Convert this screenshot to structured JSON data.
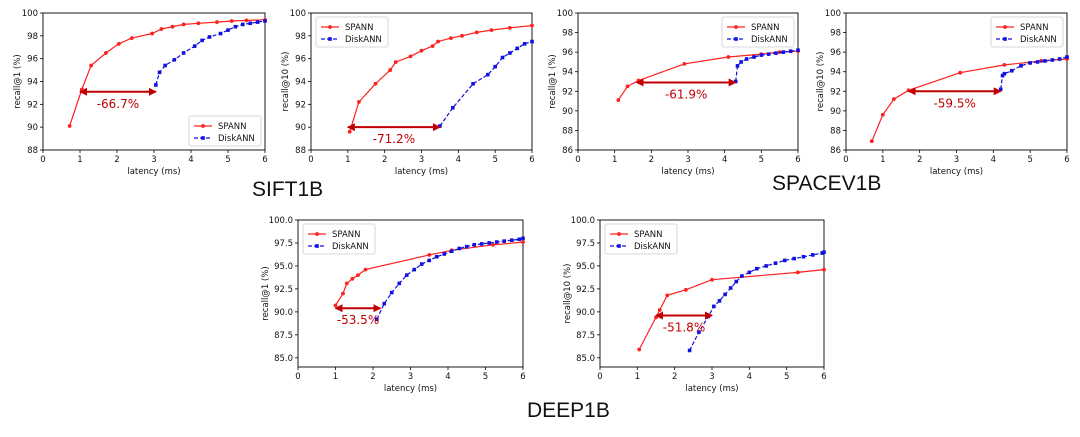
{
  "figure_titles": {
    "sift": "SIFT1B",
    "spacev": "SPACEV1B",
    "deep": "DEEP1B"
  },
  "colors": {
    "spann": "#ff2020",
    "diskann": "#1010e0",
    "annotation": "#c00000",
    "axis": "#000000"
  },
  "chart_data": [
    {
      "type": "line",
      "xlabel": "latency (ms)",
      "ylabel": "recall@1 (%)",
      "xlim": [
        0,
        6
      ],
      "ylim": [
        88,
        100
      ],
      "xticks": [
        "0",
        "1",
        "2",
        "3",
        "4",
        "5",
        "6"
      ],
      "yticks": [
        "88",
        "90",
        "92",
        "94",
        "96",
        "98",
        "100"
      ],
      "legend": "bottom-right",
      "series": [
        {
          "name": "SPANN",
          "x": [
            0.72,
            1.05,
            1.3,
            1.7,
            2.05,
            2.4,
            2.95,
            3.2,
            3.5,
            3.8,
            4.2,
            4.7,
            5.1,
            5.5,
            6.0
          ],
          "y": [
            90.1,
            93.3,
            95.4,
            96.5,
            97.3,
            97.8,
            98.2,
            98.6,
            98.8,
            99.0,
            99.1,
            99.2,
            99.3,
            99.35,
            99.4
          ]
        },
        {
          "name": "DiskANN",
          "x": [
            3.05,
            3.15,
            3.3,
            3.55,
            3.8,
            4.1,
            4.3,
            4.5,
            4.8,
            5.0,
            5.2,
            5.4,
            5.6,
            5.8,
            6.0
          ],
          "y": [
            93.7,
            94.8,
            95.4,
            95.9,
            96.5,
            97.1,
            97.6,
            97.9,
            98.2,
            98.5,
            98.8,
            99.0,
            99.1,
            99.2,
            99.3
          ]
        }
      ],
      "annotation": {
        "text": "-66.7%",
        "x_from": 1.0,
        "x_to": 3.05,
        "y": 93.1
      }
    },
    {
      "type": "line",
      "xlabel": "latency (ms)",
      "ylabel": "recall@10 (%)",
      "xlim": [
        0,
        6
      ],
      "ylim": [
        88,
        100
      ],
      "xticks": [
        "0",
        "1",
        "2",
        "3",
        "4",
        "5",
        "6"
      ],
      "yticks": [
        "88",
        "90",
        "92",
        "94",
        "96",
        "98",
        "100"
      ],
      "legend": "top-left",
      "series": [
        {
          "name": "SPANN",
          "x": [
            1.05,
            1.3,
            1.75,
            2.15,
            2.3,
            2.7,
            3.0,
            3.3,
            3.45,
            3.8,
            4.1,
            4.5,
            4.9,
            5.4,
            6.0
          ],
          "y": [
            89.6,
            92.2,
            93.8,
            95.0,
            95.7,
            96.2,
            96.7,
            97.1,
            97.5,
            97.8,
            98.0,
            98.3,
            98.5,
            98.7,
            98.9
          ]
        },
        {
          "name": "DiskANN",
          "x": [
            3.5,
            3.85,
            4.4,
            4.8,
            5.0,
            5.2,
            5.4,
            5.6,
            5.8,
            6.0
          ],
          "y": [
            90.1,
            91.7,
            93.8,
            94.6,
            95.3,
            96.1,
            96.5,
            96.9,
            97.3,
            97.5
          ]
        }
      ],
      "annotation": {
        "text": "-71.2%",
        "x_from": 1.0,
        "x_to": 3.5,
        "y": 90.0
      }
    },
    {
      "type": "line",
      "xlabel": "latency (ms)",
      "ylabel": "recall@1 (%)",
      "xlim": [
        0,
        6
      ],
      "ylim": [
        86,
        100
      ],
      "xticks": [
        "0",
        "1",
        "2",
        "3",
        "4",
        "5",
        "6"
      ],
      "yticks": [
        "86",
        "88",
        "90",
        "92",
        "94",
        "96",
        "98",
        "100"
      ],
      "legend": "top-right",
      "series": [
        {
          "name": "SPANN",
          "x": [
            1.1,
            1.35,
            1.65,
            2.9,
            4.1,
            5.0,
            5.5,
            6.0
          ],
          "y": [
            91.1,
            92.5,
            93.1,
            94.8,
            95.5,
            95.8,
            96.0,
            96.1
          ]
        },
        {
          "name": "DiskANN",
          "x": [
            4.3,
            4.35,
            4.45,
            4.6,
            4.8,
            5.0,
            5.2,
            5.4,
            5.6,
            5.8,
            6.0
          ],
          "y": [
            93.0,
            94.6,
            95.0,
            95.3,
            95.5,
            95.7,
            95.8,
            95.9,
            96.0,
            96.1,
            96.2
          ]
        }
      ],
      "annotation": {
        "text": "-61.9%",
        "x_from": 1.6,
        "x_to": 4.3,
        "y": 92.9
      }
    },
    {
      "type": "line",
      "xlabel": "latency (ms)",
      "ylabel": "recall@10 (%)",
      "xlim": [
        0,
        6
      ],
      "ylim": [
        86,
        100
      ],
      "xticks": [
        "0",
        "1",
        "2",
        "3",
        "4",
        "5",
        "6"
      ],
      "yticks": [
        "86",
        "88",
        "90",
        "92",
        "94",
        "96",
        "98",
        "100"
      ],
      "legend": "top-right",
      "series": [
        {
          "name": "SPANN",
          "x": [
            0.7,
            1.0,
            1.3,
            1.7,
            3.1,
            4.3,
            5.3,
            6.0
          ],
          "y": [
            86.9,
            89.6,
            91.2,
            92.1,
            93.9,
            94.7,
            95.1,
            95.3
          ]
        },
        {
          "name": "DiskANN",
          "x": [
            4.2,
            4.25,
            4.3,
            4.5,
            4.75,
            5.0,
            5.2,
            5.4,
            5.6,
            5.8,
            6.0
          ],
          "y": [
            92.2,
            93.6,
            93.8,
            94.1,
            94.6,
            94.9,
            95.0,
            95.1,
            95.2,
            95.3,
            95.5
          ]
        }
      ],
      "annotation": {
        "text": "-59.5%",
        "x_from": 1.7,
        "x_to": 4.2,
        "y": 92.0
      }
    },
    {
      "type": "line",
      "xlabel": "latency (ms)",
      "ylabel": "recall@1 (%)",
      "xlim": [
        0,
        6
      ],
      "ylim": [
        84,
        100
      ],
      "xticks": [
        "0",
        "1",
        "2",
        "3",
        "4",
        "5",
        "6"
      ],
      "yticks": [
        "85.0",
        "87.5",
        "90.0",
        "92.5",
        "95.0",
        "97.5",
        "100.0"
      ],
      "legend": "top-left",
      "series": [
        {
          "name": "SPANN",
          "x": [
            1.0,
            1.2,
            1.3,
            1.45,
            1.6,
            1.8,
            3.5,
            4.1,
            5.2,
            6.0
          ],
          "y": [
            90.7,
            92.0,
            93.1,
            93.6,
            94.0,
            94.6,
            96.2,
            96.7,
            97.3,
            97.6
          ]
        },
        {
          "name": "DiskANN",
          "x": [
            2.1,
            2.3,
            2.5,
            2.7,
            2.9,
            3.1,
            3.3,
            3.5,
            3.7,
            3.9,
            4.1,
            4.3,
            4.5,
            4.7,
            4.9,
            5.1,
            5.3,
            5.5,
            5.7,
            5.9,
            6.0
          ],
          "y": [
            89.2,
            90.9,
            92.1,
            93.1,
            94.0,
            94.6,
            95.2,
            95.6,
            96.0,
            96.3,
            96.6,
            96.9,
            97.1,
            97.3,
            97.4,
            97.5,
            97.6,
            97.7,
            97.8,
            97.9,
            98.0
          ]
        }
      ],
      "annotation": {
        "text": "-53.5%",
        "x_from": 1.0,
        "x_to": 2.2,
        "y": 90.4
      }
    },
    {
      "type": "line",
      "xlabel": "latency (ms)",
      "ylabel": "recall@10 (%)",
      "xlim": [
        0,
        6
      ],
      "ylim": [
        84,
        100
      ],
      "xticks": [
        "0",
        "1",
        "2",
        "3",
        "4",
        "5",
        "6"
      ],
      "yticks": [
        "85.0",
        "87.5",
        "90.0",
        "92.5",
        "95.0",
        "97.5",
        "100.0"
      ],
      "legend": "top-left",
      "series": [
        {
          "name": "SPANN",
          "x": [
            1.05,
            1.5,
            1.6,
            1.8,
            2.3,
            3.0,
            5.3,
            6.0
          ],
          "y": [
            85.9,
            89.4,
            90.2,
            91.8,
            92.4,
            93.5,
            94.3,
            94.6
          ]
        },
        {
          "name": "DiskANN",
          "x": [
            2.4,
            2.65,
            2.9,
            3.05,
            3.2,
            3.35,
            3.5,
            3.65,
            3.8,
            4.0,
            4.2,
            4.45,
            4.7,
            4.95,
            5.2,
            5.45,
            5.7,
            5.95,
            6.0
          ],
          "y": [
            85.8,
            87.8,
            89.5,
            90.6,
            91.2,
            91.9,
            92.6,
            93.3,
            93.9,
            94.3,
            94.7,
            95.0,
            95.3,
            95.6,
            95.8,
            96.0,
            96.2,
            96.4,
            96.5
          ]
        }
      ],
      "annotation": {
        "text": "-51.8%",
        "x_from": 1.5,
        "x_to": 3.0,
        "y": 89.6
      }
    }
  ]
}
